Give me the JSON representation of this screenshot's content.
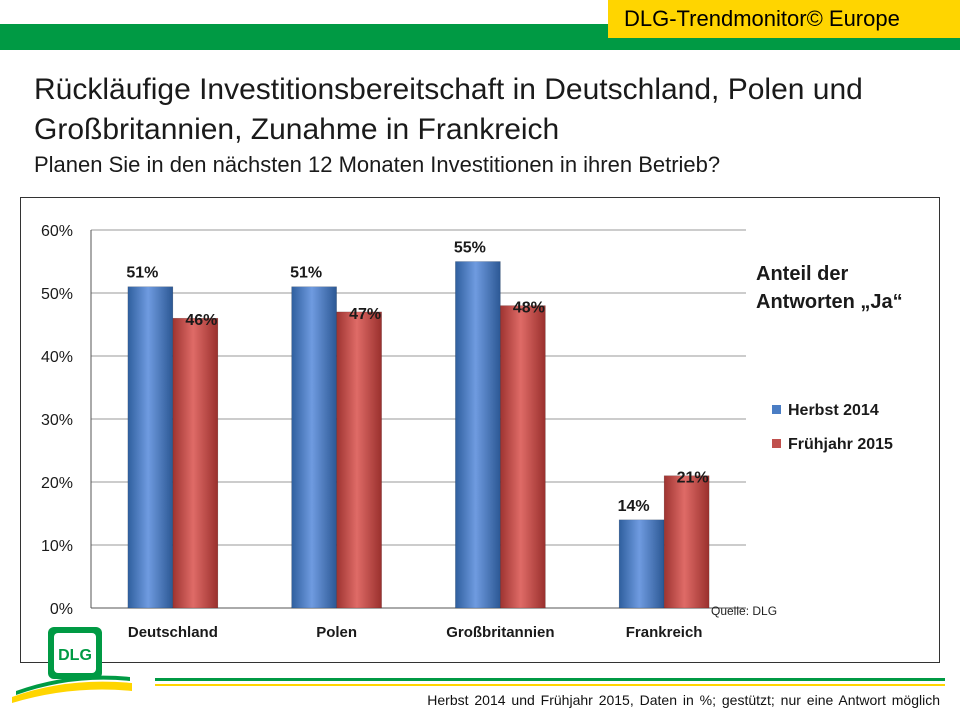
{
  "header": {
    "brand": "DLG-Trendmonitor© Europe",
    "headline": "Rückläufige Investitionsbereitschaft in Deutschland, Polen und Großbritannien, Zunahme in Frankreich",
    "subhead": "Planen Sie in den nächsten 12 Monaten Investitionen in ihren Betrieb?"
  },
  "colors": {
    "green": "#009a44",
    "yellow": "#ffd500",
    "series_blue": "#4a7dc4",
    "series_red": "#c0504d"
  },
  "chart_data": {
    "type": "bar",
    "categories": [
      "Deutschland",
      "Polen",
      "Großbritannien",
      "Frankreich"
    ],
    "series": [
      {
        "name": "Herbst 2014",
        "values": [
          51,
          51,
          55,
          14
        ],
        "labels": [
          "51%",
          "51%",
          "55%",
          "14%"
        ],
        "color": "#4a7dc4"
      },
      {
        "name": "Frühjahr 2015",
        "values": [
          46,
          47,
          48,
          21
        ],
        "labels": [
          "46%",
          "47%",
          "48%",
          "21%"
        ],
        "color": "#c0504d"
      }
    ],
    "y_ticks": [
      0,
      10,
      20,
      30,
      40,
      50,
      60
    ],
    "y_tick_labels": [
      "0%",
      "10%",
      "20%",
      "30%",
      "40%",
      "50%",
      "60%"
    ],
    "ylim": [
      0,
      60
    ],
    "grid": true,
    "legend_title": "Anteil der Antworten „Ja“",
    "legend_position": "right",
    "source": "Quelle: DLG"
  },
  "footer": {
    "note": "Herbst 2014 und Frühjahr 2015, Daten in %; gestützt; nur eine Antwort möglich",
    "logo_text": "DLG"
  }
}
